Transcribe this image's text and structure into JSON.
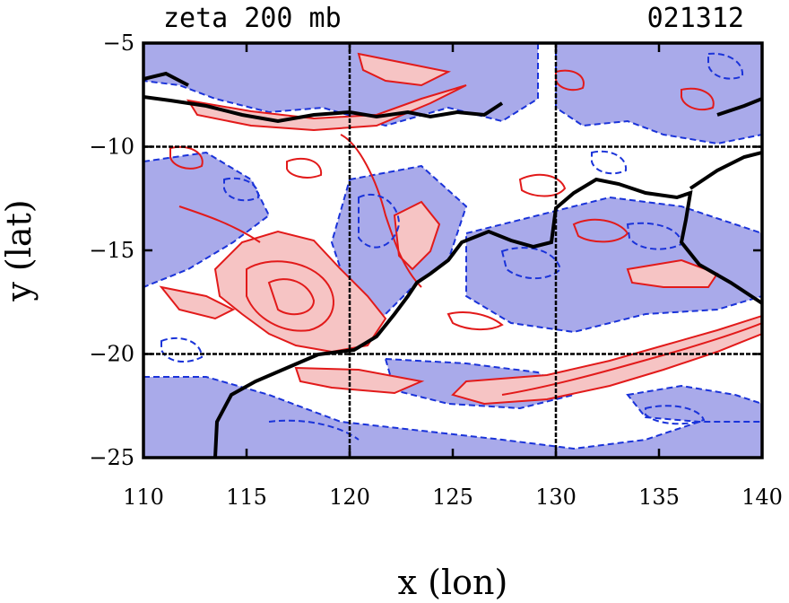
{
  "chart_data": {
    "type": "contour",
    "title": "zeta 200 mb",
    "date_label": "021312",
    "xlabel": "x (lon)",
    "ylabel": "y (lat)",
    "xlim": [
      110,
      140
    ],
    "ylim": [
      -25,
      -5
    ],
    "xticks": [
      110,
      115,
      120,
      125,
      130,
      135,
      140
    ],
    "yticks": [
      -5,
      -10,
      -15,
      -20,
      -25
    ],
    "gridlines": {
      "x": [
        120,
        130
      ],
      "y": [
        -10,
        -20
      ]
    },
    "colors": {
      "positive_fill": "#f6c4c4",
      "positive_line": "#e21a1a",
      "negative_fill": "#a9aaea",
      "negative_line": "#1a33d9",
      "coastline": "#000000",
      "grid": "#000000"
    }
  }
}
